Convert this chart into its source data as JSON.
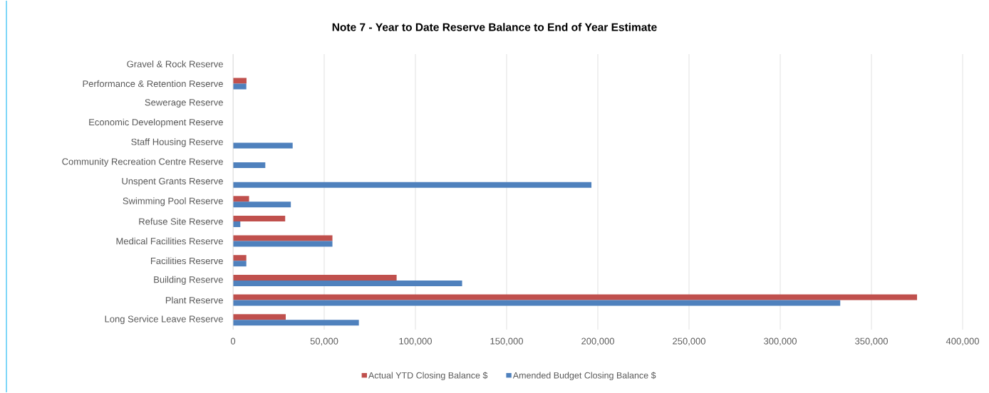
{
  "chart_data": {
    "type": "bar",
    "orientation": "horizontal",
    "title": "Note 7 - Year to Date Reserve Balance to End of Year Estimate",
    "categories": [
      "Gravel & Rock Reserve",
      "Performance & Retention Reserve",
      "Sewerage Reserve",
      "Economic Development Reserve",
      "Staff Housing Reserve",
      "Community Recreation Centre Reserve",
      "Unspent Grants Reserve",
      "Swimming Pool Reserve",
      "Refuse Site Reserve",
      "Medical Facilities Reserve",
      "Facilities Reserve",
      "Building Reserve",
      "Plant Reserve",
      "Long Service Leave Reserve"
    ],
    "series": [
      {
        "name": "Actual YTD Closing Balance $",
        "color": "#c0504d",
        "values": [
          0,
          7400,
          0,
          0,
          0,
          0,
          0,
          8800,
          28600,
          54500,
          7300,
          89700,
          375000,
          28900
        ]
      },
      {
        "name": "Amended Budget Closing Balance $",
        "color": "#4f81bd",
        "values": [
          0,
          7300,
          0,
          0,
          32700,
          17700,
          196500,
          31700,
          4000,
          54500,
          7300,
          125600,
          332900,
          69000
        ]
      }
    ],
    "xlim": [
      0,
      400000
    ],
    "xticks": [
      0,
      {
        "value": 50000,
        "label": "50,000"
      },
      {
        "value": 100000,
        "label": "100,000"
      },
      {
        "value": 150000,
        "label": "150,000"
      },
      {
        "value": 200000,
        "label": "200,000"
      },
      {
        "value": 250000,
        "label": "250,000"
      },
      {
        "value": 300000,
        "label": "300,000"
      },
      {
        "value": 350000,
        "label": "350,000"
      },
      {
        "value": 400000,
        "label": "400,000"
      }
    ],
    "grid": "x",
    "legend": "bottom"
  }
}
